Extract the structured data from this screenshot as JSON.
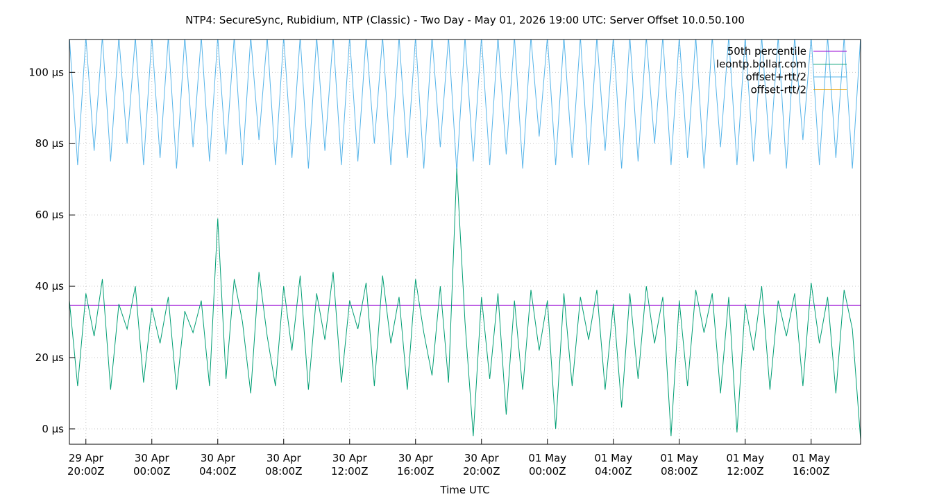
{
  "chart_data": {
    "type": "line",
    "title": "NTP4: SecureSync, Rubidium, NTP (Classic) - Two Day - May 01, 2026 19:00 UTC: Server Offset 10.0.50.100",
    "x_label": "Time UTC",
    "xlim": [
      "2026-04-29T19:00",
      "2026-05-01T19:00"
    ],
    "xticks": [
      {
        "value": "2026-04-29T20:00",
        "label": "29 Apr\n20:00Z"
      },
      {
        "value": "2026-04-30T00:00",
        "label": "30 Apr\n00:00Z"
      },
      {
        "value": "2026-04-30T04:00",
        "label": "30 Apr\n04:00Z"
      },
      {
        "value": "2026-04-30T08:00",
        "label": "30 Apr\n08:00Z"
      },
      {
        "value": "2026-04-30T12:00",
        "label": "30 Apr\n12:00Z"
      },
      {
        "value": "2026-04-30T16:00",
        "label": "30 Apr\n16:00Z"
      },
      {
        "value": "2026-04-30T20:00",
        "label": "30 Apr\n20:00Z"
      },
      {
        "value": "2026-05-01T00:00",
        "label": "01 May\n00:00Z"
      },
      {
        "value": "2026-05-01T04:00",
        "label": "01 May\n04:00Z"
      },
      {
        "value": "2026-05-01T08:00",
        "label": "01 May\n08:00Z"
      },
      {
        "value": "2026-05-01T12:00",
        "label": "01 May\n12:00Z"
      },
      {
        "value": "2026-05-01T16:00",
        "label": "01 May\n16:00Z"
      }
    ],
    "ylim": [
      -4.3,
      109.2
    ],
    "yticks": [
      {
        "value": 0,
        "label": "0 µs"
      },
      {
        "value": 20,
        "label": "20 µs"
      },
      {
        "value": 40,
        "label": "40 µs"
      },
      {
        "value": 60,
        "label": "60 µs"
      },
      {
        "value": 80,
        "label": "80 µs"
      },
      {
        "value": 100,
        "label": "100 µs"
      }
    ],
    "grid": true,
    "legend": "top-right",
    "percentile_line": {
      "name": "50th percentile",
      "color": "#9400d3",
      "value": 34.7
    },
    "x": [
      "2026-04-29T19:00",
      "2026-04-29T19:30",
      "2026-04-29T20:00",
      "2026-04-29T20:30",
      "2026-04-29T21:00",
      "2026-04-29T21:30",
      "2026-04-29T22:00",
      "2026-04-29T22:30",
      "2026-04-29T23:00",
      "2026-04-29T23:30",
      "2026-04-30T00:00",
      "2026-04-30T00:30",
      "2026-04-30T01:00",
      "2026-04-30T01:30",
      "2026-04-30T02:00",
      "2026-04-30T02:30",
      "2026-04-30T03:00",
      "2026-04-30T03:30",
      "2026-04-30T04:00",
      "2026-04-30T04:30",
      "2026-04-30T05:00",
      "2026-04-30T05:30",
      "2026-04-30T06:00",
      "2026-04-30T06:30",
      "2026-04-30T07:00",
      "2026-04-30T07:30",
      "2026-04-30T08:00",
      "2026-04-30T08:30",
      "2026-04-30T09:00",
      "2026-04-30T09:30",
      "2026-04-30T10:00",
      "2026-04-30T10:30",
      "2026-04-30T11:00",
      "2026-04-30T11:30",
      "2026-04-30T12:00",
      "2026-04-30T12:30",
      "2026-04-30T13:00",
      "2026-04-30T13:30",
      "2026-04-30T14:00",
      "2026-04-30T14:30",
      "2026-04-30T15:00",
      "2026-04-30T15:30",
      "2026-04-30T16:00",
      "2026-04-30T16:30",
      "2026-04-30T17:00",
      "2026-04-30T17:30",
      "2026-04-30T18:00",
      "2026-04-30T18:30",
      "2026-04-30T19:00",
      "2026-04-30T19:30",
      "2026-04-30T20:00",
      "2026-04-30T20:30",
      "2026-04-30T21:00",
      "2026-04-30T21:30",
      "2026-04-30T22:00",
      "2026-04-30T22:30",
      "2026-04-30T23:00",
      "2026-04-30T23:30",
      "2026-05-01T00:00",
      "2026-05-01T00:30",
      "2026-05-01T01:00",
      "2026-05-01T01:30",
      "2026-05-01T02:00",
      "2026-05-01T02:30",
      "2026-05-01T03:00",
      "2026-05-01T03:30",
      "2026-05-01T04:00",
      "2026-05-01T04:30",
      "2026-05-01T05:00",
      "2026-05-01T05:30",
      "2026-05-01T06:00",
      "2026-05-01T06:30",
      "2026-05-01T07:00",
      "2026-05-01T07:30",
      "2026-05-01T08:00",
      "2026-05-01T08:30",
      "2026-05-01T09:00",
      "2026-05-01T09:30",
      "2026-05-01T10:00",
      "2026-05-01T10:30",
      "2026-05-01T11:00",
      "2026-05-01T11:30",
      "2026-05-01T12:00",
      "2026-05-01T12:30",
      "2026-05-01T13:00",
      "2026-05-01T13:30",
      "2026-05-01T14:00",
      "2026-05-01T14:30",
      "2026-05-01T15:00",
      "2026-05-01T15:30",
      "2026-05-01T16:00",
      "2026-05-01T16:30",
      "2026-05-01T17:00",
      "2026-05-01T17:30",
      "2026-05-01T18:00",
      "2026-05-01T18:30",
      "2026-05-01T19:00"
    ],
    "series": [
      {
        "name": "offset+rtt/2",
        "color": "#56b4e9",
        "values": [
          110,
          74,
          110,
          78,
          110,
          75,
          110,
          80,
          110,
          74,
          110,
          76,
          110,
          73,
          110,
          79,
          110,
          75,
          110,
          77,
          110,
          74,
          110,
          81,
          110,
          74,
          110,
          76,
          110,
          73,
          110,
          78,
          110,
          74,
          110,
          75,
          110,
          80,
          110,
          74,
          110,
          76,
          110,
          73,
          110,
          79,
          110,
          72,
          110,
          75,
          110,
          74,
          110,
          77,
          110,
          73,
          110,
          82,
          110,
          74,
          110,
          76,
          110,
          74,
          110,
          78,
          110,
          73,
          110,
          75,
          110,
          80,
          110,
          74,
          110,
          76,
          110,
          73,
          110,
          79,
          110,
          74,
          110,
          75,
          110,
          77,
          110,
          73,
          110,
          81,
          110,
          74,
          110,
          76,
          110,
          73,
          110
        ]
      },
      {
        "name": "offset-rtt/2",
        "color": "#e69f00",
        "values": [
          null,
          null,
          null,
          null,
          null,
          null,
          null,
          null,
          null,
          null,
          null,
          null,
          null,
          null,
          null,
          null,
          null,
          null,
          null,
          null,
          null,
          null,
          null,
          null,
          null,
          null,
          null,
          null,
          null,
          null,
          null,
          null,
          null,
          null,
          null,
          null,
          null,
          null,
          null,
          null,
          null,
          null,
          null,
          null,
          null,
          null,
          null,
          null,
          null,
          null,
          null,
          null,
          null,
          null,
          null,
          null,
          null,
          null,
          null,
          null,
          null,
          null,
          null,
          null,
          null,
          null,
          null,
          null,
          null,
          null,
          null,
          null,
          null,
          null,
          null,
          null,
          null,
          null,
          null,
          null,
          null,
          null,
          null,
          null,
          null,
          null,
          null,
          null,
          null,
          null,
          null,
          null,
          null,
          null,
          null,
          null,
          null
        ]
      },
      {
        "name": "leontp.bollar.com",
        "color": "#009e73",
        "values": [
          36,
          12,
          38,
          26,
          42,
          11,
          35,
          28,
          40,
          13,
          34,
          24,
          37,
          11,
          33,
          27,
          36,
          12,
          59,
          14,
          42,
          30,
          10,
          44,
          26,
          12,
          40,
          22,
          43,
          11,
          38,
          25,
          44,
          13,
          36,
          28,
          41,
          12,
          43,
          24,
          37,
          11,
          42,
          27,
          15,
          40,
          13,
          73,
          30,
          -2,
          37,
          14,
          38,
          4,
          36,
          11,
          39,
          22,
          36,
          0,
          38,
          12,
          37,
          25,
          39,
          11,
          35,
          6,
          38,
          14,
          40,
          24,
          37,
          -2,
          36,
          12,
          39,
          27,
          38,
          10,
          37,
          -1,
          35,
          22,
          40,
          11,
          36,
          26,
          38,
          12,
          41,
          24,
          37,
          10,
          39,
          28,
          -3
        ]
      }
    ],
    "legend_order": [
      "percentile",
      2,
      0,
      1
    ]
  }
}
